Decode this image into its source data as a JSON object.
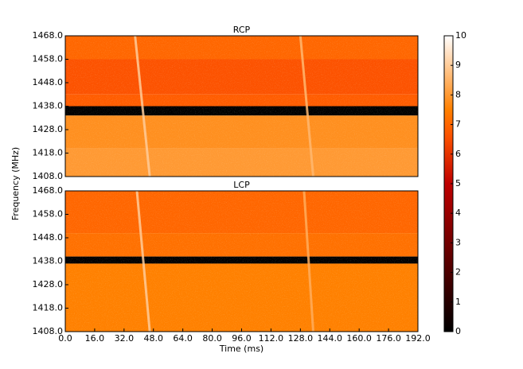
{
  "chart_data": [
    {
      "type": "heatmap",
      "title": "RCP",
      "ylabel": "Frequency (MHz)",
      "xlim": [
        0,
        192
      ],
      "ylim": [
        1408,
        1468
      ],
      "vlim": [
        0,
        10
      ],
      "yticks": [
        {
          "value": 1408,
          "label": "1408.0"
        },
        {
          "value": 1418,
          "label": "1418.0"
        },
        {
          "value": 1428,
          "label": "1428.0"
        },
        {
          "value": 1438,
          "label": "1438.0"
        },
        {
          "value": 1448,
          "label": "1448.0"
        },
        {
          "value": 1458,
          "label": "1458.0"
        },
        {
          "value": 1468,
          "label": "1468.0"
        }
      ],
      "bands": [
        {
          "from": 1458,
          "to": 1468,
          "value": 7.0
        },
        {
          "from": 1443,
          "to": 1458,
          "value": 6.6
        },
        {
          "from": 1438,
          "to": 1443,
          "value": 6.8
        },
        {
          "from": 1434,
          "to": 1438,
          "value": 0
        },
        {
          "from": 1420,
          "to": 1434,
          "value": 7.8
        },
        {
          "from": 1408,
          "to": 1420,
          "value": 8.0
        }
      ],
      "pulses": [
        {
          "x": [
            38,
            46
          ],
          "y": [
            1468,
            1408
          ],
          "value": 9
        },
        {
          "x": [
            128,
            135
          ],
          "y": [
            1468,
            1408
          ],
          "value": 8.6
        }
      ]
    },
    {
      "type": "heatmap",
      "title": "LCP",
      "xlabel": "Time (ms)",
      "xlim": [
        0,
        192
      ],
      "ylim": [
        1408,
        1468
      ],
      "vlim": [
        0,
        10
      ],
      "yticks": [
        {
          "value": 1408,
          "label": "1408.0"
        },
        {
          "value": 1418,
          "label": "1418.0"
        },
        {
          "value": 1428,
          "label": "1428.0"
        },
        {
          "value": 1438,
          "label": "1438.0"
        },
        {
          "value": 1448,
          "label": "1448.0"
        },
        {
          "value": 1458,
          "label": "1458.0"
        },
        {
          "value": 1468,
          "label": "1468.0"
        }
      ],
      "xticks": [
        {
          "value": 0,
          "label": "0.0"
        },
        {
          "value": 16,
          "label": "16.0"
        },
        {
          "value": 32,
          "label": "32.0"
        },
        {
          "value": 48,
          "label": "48.0"
        },
        {
          "value": 64,
          "label": "64.0"
        },
        {
          "value": 80,
          "label": "80.0"
        },
        {
          "value": 96,
          "label": "96.0"
        },
        {
          "value": 112,
          "label": "112.0"
        },
        {
          "value": 128,
          "label": "128.0"
        },
        {
          "value": 144,
          "label": "144.0"
        },
        {
          "value": 160,
          "label": "160.0"
        },
        {
          "value": 176,
          "label": "176.0"
        },
        {
          "value": 192,
          "label": "192.0"
        }
      ],
      "bands": [
        {
          "from": 1450,
          "to": 1468,
          "value": 7.0
        },
        {
          "from": 1440,
          "to": 1450,
          "value": 7.2
        },
        {
          "from": 1437,
          "to": 1440,
          "value": 0
        },
        {
          "from": 1408,
          "to": 1437,
          "value": 7.5
        }
      ],
      "pulses": [
        {
          "x": [
            39,
            46
          ],
          "y": [
            1468,
            1408
          ],
          "value": 9
        },
        {
          "x": [
            130,
            135
          ],
          "y": [
            1468,
            1408
          ],
          "value": 8.4
        }
      ]
    },
    {
      "type": "colorbar",
      "ylim": [
        0,
        10
      ],
      "yticks": [
        0,
        1,
        2,
        3,
        4,
        5,
        6,
        7,
        8,
        9,
        10
      ]
    }
  ]
}
